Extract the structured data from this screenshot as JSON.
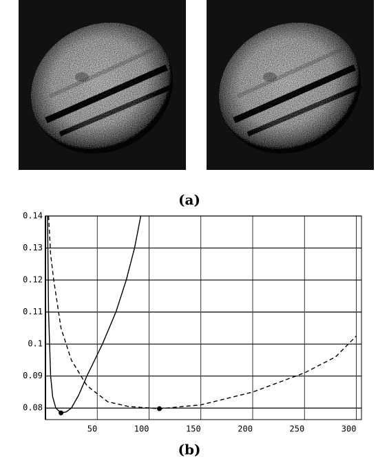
{
  "figure": {
    "label_a": "(a)",
    "label_b": "(b)"
  },
  "chart_data": {
    "type": "line",
    "xlim": [
      0,
      305
    ],
    "ylim": [
      0.0764,
      0.14
    ],
    "xticks": [
      50,
      100,
      150,
      200,
      250,
      300
    ],
    "yticks": [
      0.08,
      0.09,
      0.1,
      0.11,
      0.12,
      0.13,
      0.14
    ],
    "grid": true,
    "series": [
      {
        "style": "solid",
        "color": "#000000",
        "x": [
          2,
          3,
          5,
          7,
          10,
          15,
          20,
          25,
          32,
          40,
          55,
          68,
          78,
          86,
          92
        ],
        "values": [
          0.14,
          0.11,
          0.09,
          0.0835,
          0.08,
          0.0785,
          0.0788,
          0.08,
          0.084,
          0.09,
          0.1,
          0.11,
          0.12,
          0.13,
          0.14
        ]
      },
      {
        "style": "dashed",
        "color": "#000000",
        "x": [
          3,
          5,
          8,
          15,
          25,
          40,
          60,
          80,
          110,
          150,
          200,
          250,
          280,
          300
        ],
        "values": [
          0.14,
          0.128,
          0.12,
          0.105,
          0.095,
          0.087,
          0.082,
          0.0805,
          0.0798,
          0.081,
          0.085,
          0.091,
          0.096,
          0.1025
        ]
      }
    ],
    "markers": {
      "color": "#000000",
      "x": [
        15,
        110
      ],
      "values": [
        0.0785,
        0.0798
      ]
    }
  }
}
